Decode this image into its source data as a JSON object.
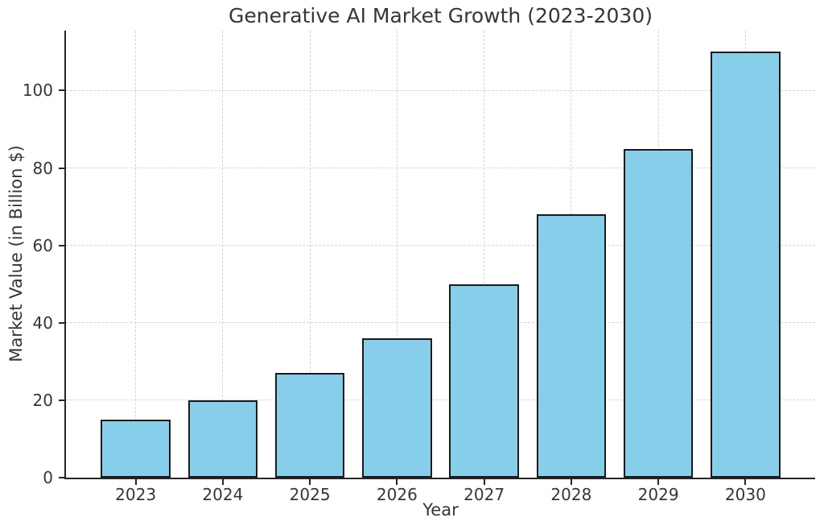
{
  "chart_data": {
    "type": "bar",
    "title": "Generative AI Market Growth (2023-2030)",
    "xlabel": "Year",
    "ylabel": "Market Value (in Billion $)",
    "categories": [
      "2023",
      "2024",
      "2025",
      "2026",
      "2027",
      "2028",
      "2029",
      "2030"
    ],
    "values": [
      15,
      20,
      27,
      36,
      50,
      68,
      85,
      110
    ],
    "yticks": [
      0,
      20,
      40,
      60,
      80,
      100
    ],
    "ylim": [
      0,
      115.5
    ],
    "xlim": [
      -0.8,
      7.8
    ],
    "bar_width": 0.8,
    "grid": true,
    "grid_style": "dashed",
    "legend": "none",
    "bar_color": "#87CEEB",
    "bar_edge_color": "#1a1a1a",
    "grid_color": "#d4d4d4",
    "axis_color": "#262626",
    "text_color": "#363636"
  }
}
